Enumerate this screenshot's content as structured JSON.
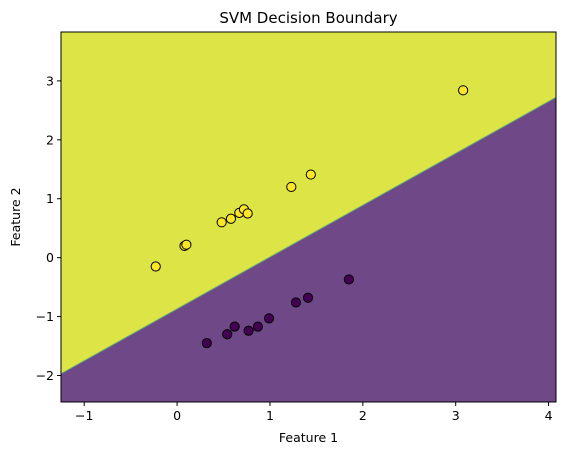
{
  "chart_data": {
    "type": "scatter",
    "title": "SVM Decision Boundary",
    "xlabel": "Feature 1",
    "ylabel": "Feature 2",
    "xlim": [
      -1.25,
      4.08
    ],
    "ylim": [
      -2.45,
      3.83
    ],
    "xticks": [
      -1,
      0,
      1,
      2,
      3,
      4
    ],
    "yticks": [
      -2,
      -1,
      0,
      1,
      2,
      3
    ],
    "grid": false,
    "decision_boundary": {
      "line_points": [
        [
          -1.25,
          -1.97
        ],
        [
          4.08,
          2.72
        ]
      ],
      "upper_region_color": "#dce446",
      "lower_region_color": "#6e4887"
    },
    "series": [
      {
        "class": 1,
        "color": "#fde725",
        "points": [
          [
            -0.23,
            -0.15
          ],
          [
            0.08,
            0.2
          ],
          [
            0.1,
            0.22
          ],
          [
            0.48,
            0.6
          ],
          [
            0.58,
            0.66
          ],
          [
            0.67,
            0.76
          ],
          [
            0.72,
            0.82
          ],
          [
            0.76,
            0.75
          ],
          [
            1.23,
            1.2
          ],
          [
            1.44,
            1.41
          ],
          [
            3.08,
            2.84
          ]
        ]
      },
      {
        "class": 0,
        "color": "#440154",
        "points": [
          [
            0.32,
            -1.45
          ],
          [
            0.54,
            -1.3
          ],
          [
            0.62,
            -1.17
          ],
          [
            0.77,
            -1.24
          ],
          [
            0.87,
            -1.17
          ],
          [
            0.99,
            -1.03
          ],
          [
            1.28,
            -0.76
          ],
          [
            1.41,
            -0.68
          ],
          [
            1.85,
            -0.37
          ]
        ]
      }
    ]
  }
}
